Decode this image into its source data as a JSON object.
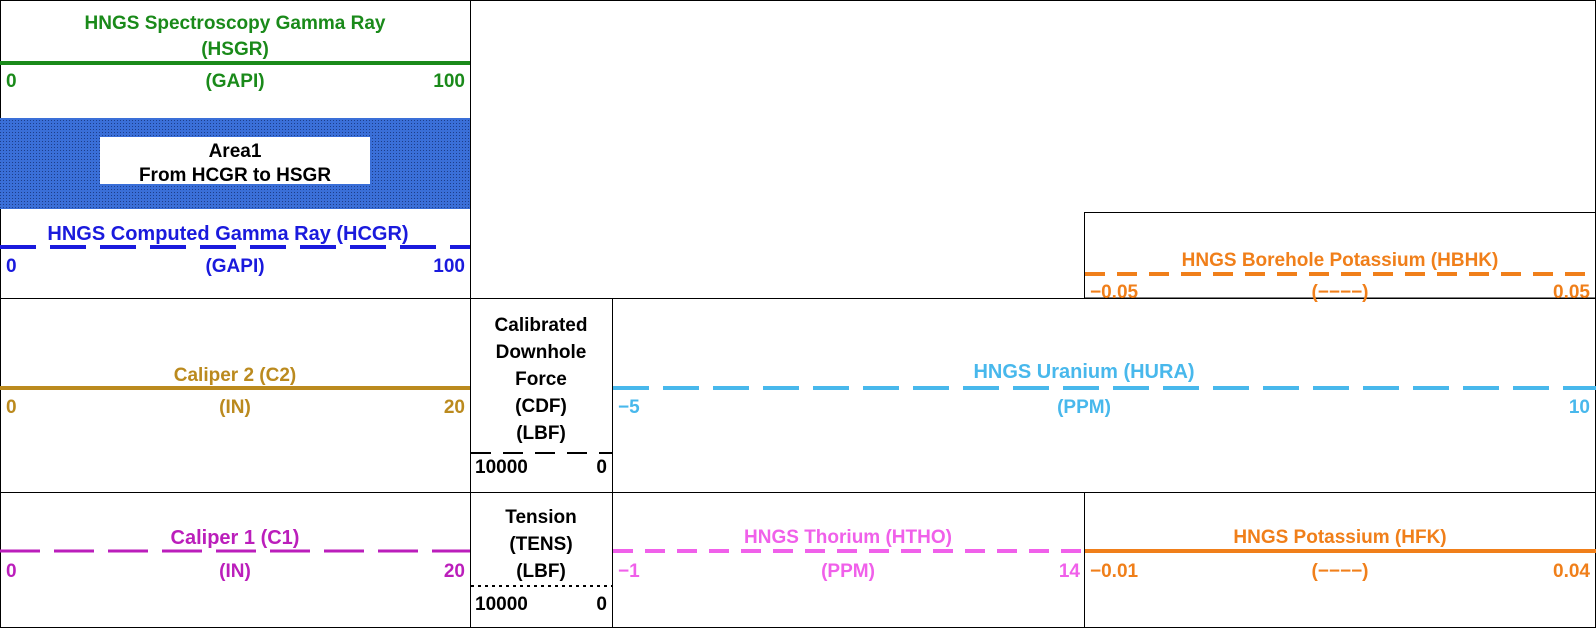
{
  "colors": {
    "hsgr": "#1a8a1a",
    "hcgr": "#1a1add",
    "area_fill": "#3a6fd8",
    "hbhk": "#f07f1a",
    "c2": "#bb8a1e",
    "hura": "#48b8ec",
    "c1": "#bb1ebb",
    "htho": "#f060ea",
    "hfk": "#f07f1a",
    "black": "#000000"
  },
  "curves": {
    "hsgr": {
      "title_line1": "HNGS Spectroscopy Gamma Ray",
      "title_line2": "(HSGR)",
      "min": "0",
      "unit": "(GAPI)",
      "max": "100",
      "line_style": "solid"
    },
    "area": {
      "line1": "Area1",
      "line2": "From HCGR to HSGR"
    },
    "hcgr": {
      "title": "HNGS Computed Gamma Ray (HCGR)",
      "min": "0",
      "unit": "(GAPI)",
      "max": "100",
      "line_style": "long-dash"
    },
    "hbhk": {
      "title": "HNGS Borehole Potassium (HBHK)",
      "min": "−0.05",
      "unit": "(−−−−)",
      "max": "0.05",
      "line_style": "dash"
    },
    "c2": {
      "title": "Caliper 2 (C2)",
      "min": "0",
      "unit": "(IN)",
      "max": "20",
      "line_style": "solid"
    },
    "cdf": {
      "line1": "Calibrated",
      "line2": "Downhole",
      "line3": "Force",
      "line4": "(CDF)",
      "unit": "(LBF)",
      "min": "10000",
      "max": "0",
      "line_style": "long-dash"
    },
    "hura": {
      "title": "HNGS Uranium (HURA)",
      "min": "−5",
      "unit": "(PPM)",
      "max": "10",
      "line_style": "long-dash"
    },
    "c1": {
      "title": "Caliper 1 (C1)",
      "min": "0",
      "unit": "(IN)",
      "max": "20",
      "line_style": "long-dash"
    },
    "tens": {
      "line1": "Tension",
      "line2": "(TENS)",
      "unit": "(LBF)",
      "min": "10000",
      "max": "0",
      "line_style": "dotted"
    },
    "htho": {
      "title": "HNGS Thorium (HTHO)",
      "min": "−1",
      "unit": "(PPM)",
      "max": "14",
      "line_style": "dash"
    },
    "hfk": {
      "title": "HNGS Potassium (HFK)",
      "min": "−0.01",
      "unit": "(−−−−)",
      "max": "0.04",
      "line_style": "solid"
    }
  }
}
